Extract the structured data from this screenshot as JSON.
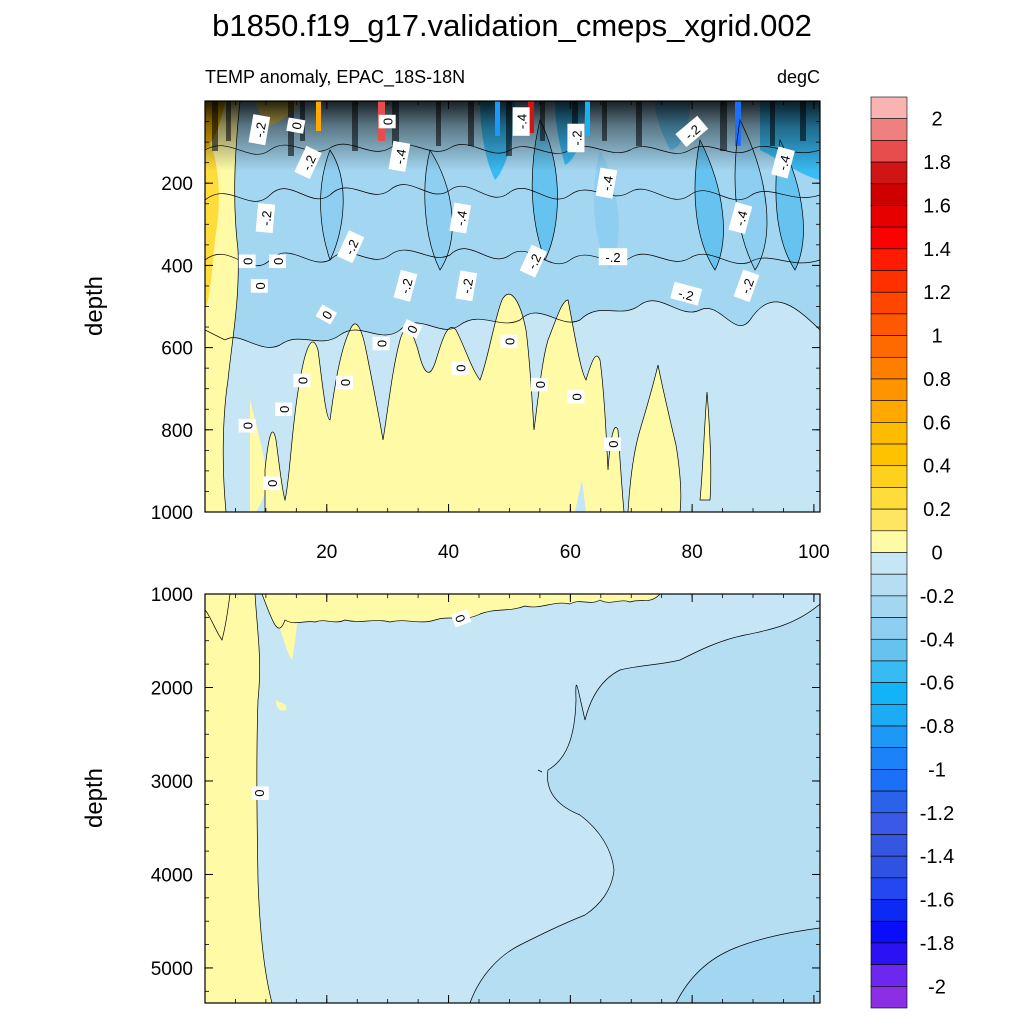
{
  "chart_data": {
    "type": "contour",
    "title": "b1850.f19_g17.validation_cmeps_xgrid.002",
    "panels": [
      {
        "name": "upper-ocean",
        "left_label": "TEMP anomaly, EPAC_18S-18N",
        "right_label": "degC",
        "ylabel": "depth",
        "ylim": [
          0,
          1000
        ],
        "y_reversed": true,
        "y_ticks": [
          200,
          400,
          600,
          800,
          1000
        ],
        "y_tick_labels": [
          "200",
          "400",
          "600",
          "800",
          "1000"
        ],
        "xlim": [
          0,
          101
        ],
        "x_ticks": [
          20,
          40,
          60,
          80,
          100
        ],
        "x_tick_labels": [
          "20",
          "40",
          "60",
          "80",
          "100"
        ],
        "contour_labels": [
          {
            "text": "-.2",
            "x": 9,
            "y": 70,
            "rot": -80
          },
          {
            "text": "0",
            "x": 15,
            "y": 60,
            "rot": -80
          },
          {
            "text": "-.2",
            "x": 17,
            "y": 150,
            "rot": -65
          },
          {
            "text": "0",
            "x": 30,
            "y": 50,
            "rot": -90
          },
          {
            "text": "-.4",
            "x": 32,
            "y": 135,
            "rot": -80
          },
          {
            "text": "-.4",
            "x": 52,
            "y": 50,
            "rot": -90
          },
          {
            "text": "-.2",
            "x": 61,
            "y": 90,
            "rot": -90
          },
          {
            "text": "-.4",
            "x": 66,
            "y": 200,
            "rot": -80
          },
          {
            "text": "-.2",
            "x": 80,
            "y": 75,
            "rot": -40
          },
          {
            "text": "-.4",
            "x": 95,
            "y": 150,
            "rot": -75
          },
          {
            "text": "-.2",
            "x": 10,
            "y": 285,
            "rot": -85
          },
          {
            "text": "-.2",
            "x": 24,
            "y": 355,
            "rot": -65
          },
          {
            "text": "-.4",
            "x": 42,
            "y": 285,
            "rot": -80
          },
          {
            "text": "-.4",
            "x": 88,
            "y": 285,
            "rot": -75
          },
          {
            "text": "0",
            "x": 7,
            "y": 390,
            "rot": -90
          },
          {
            "text": "0",
            "x": 12,
            "y": 390,
            "rot": -90
          },
          {
            "text": "0",
            "x": 9,
            "y": 450,
            "rot": -90
          },
          {
            "text": "-.2",
            "x": 33,
            "y": 450,
            "rot": -75
          },
          {
            "text": "-.2",
            "x": 43,
            "y": 450,
            "rot": -80
          },
          {
            "text": "-.2",
            "x": 54,
            "y": 390,
            "rot": -65
          },
          {
            "text": "-.2",
            "x": 67,
            "y": 380,
            "rot": 0
          },
          {
            "text": "-.2",
            "x": 79,
            "y": 470,
            "rot": 15
          },
          {
            "text": "-.2",
            "x": 89,
            "y": 450,
            "rot": -70
          },
          {
            "text": "0",
            "x": 20,
            "y": 520,
            "rot": -60
          },
          {
            "text": "0",
            "x": 29,
            "y": 590,
            "rot": -90
          },
          {
            "text": "0",
            "x": 34,
            "y": 555,
            "rot": -65
          },
          {
            "text": "0",
            "x": 50,
            "y": 585,
            "rot": -90
          },
          {
            "text": "0",
            "x": 42,
            "y": 650,
            "rot": -90
          },
          {
            "text": "0",
            "x": 16,
            "y": 680,
            "rot": -90
          },
          {
            "text": "0",
            "x": 23,
            "y": 685,
            "rot": -90
          },
          {
            "text": "0",
            "x": 55,
            "y": 690,
            "rot": -90
          },
          {
            "text": "0",
            "x": 61,
            "y": 720,
            "rot": -90
          },
          {
            "text": "0",
            "x": 13,
            "y": 750,
            "rot": -90
          },
          {
            "text": "0",
            "x": 7,
            "y": 790,
            "rot": -90
          },
          {
            "text": "0",
            "x": 67,
            "y": 835,
            "rot": -90
          },
          {
            "text": "0",
            "x": 11,
            "y": 930,
            "rot": -90
          }
        ]
      },
      {
        "name": "deep-ocean",
        "ylabel": "depth",
        "ylim": [
          1000,
          5375
        ],
        "y_reversed": true,
        "y_ticks": [
          1000,
          2000,
          3000,
          4000,
          5000
        ],
        "y_tick_labels": [
          "1000",
          "2000",
          "3000",
          "4000",
          "5000"
        ],
        "xlim": [
          0,
          101
        ],
        "x_ticks": [
          20,
          40,
          60,
          80,
          100
        ],
        "contour_labels": [
          {
            "text": "0",
            "x": 42,
            "y": 1260,
            "rot": 70
          },
          {
            "text": "0",
            "x": 9,
            "y": 3130,
            "rot": 90
          }
        ]
      }
    ],
    "colorbar": {
      "units": "degC",
      "min": -2.1,
      "max": 2.1,
      "step": 0.1,
      "tick_values": [
        2,
        1.8,
        1.6,
        1.4,
        1.2,
        1,
        0.8,
        0.6,
        0.4,
        0.2,
        0,
        -0.2,
        -0.4,
        -0.6,
        -0.8,
        -1,
        -1.2,
        -1.4,
        -1.6,
        -1.8,
        -2
      ],
      "tick_labels": [
        "2",
        "1.8",
        "1.6",
        "1.4",
        "1.2",
        "1",
        "0.8",
        "0.6",
        "0.4",
        "0.2",
        "0",
        "-0.2",
        "-0.4",
        "-0.6",
        "-0.8",
        "-1",
        "-1.2",
        "-1.4",
        "-1.6",
        "-1.8",
        "-2"
      ],
      "colors_top_to_bottom": [
        "#f9b3b3",
        "#ef8080",
        "#e84d4d",
        "#d11515",
        "#cf0000",
        "#e60000",
        "#fe0000",
        "#fe1b00",
        "#fe3000",
        "#fe4600",
        "#fe5800",
        "#fe6a00",
        "#fe7e00",
        "#fe9400",
        "#fea800",
        "#febc00",
        "#fec200",
        "#fed21c",
        "#fedc3a",
        "#fee662",
        "#fefaa6",
        "#c6e6f6",
        "#b5def3",
        "#a3d6f0",
        "#8ecef0",
        "#66c3f0",
        "#38baf3",
        "#13b3f7",
        "#1bacf5",
        "#1d98f6",
        "#1b83f7",
        "#1c70f7",
        "#2a62ea",
        "#3a59e6",
        "#3556e1",
        "#2f52e3",
        "#2347f0",
        "#0c2af3",
        "#0a0dfa",
        "#2c11f4",
        "#6c28ef",
        "#8c2ee5"
      ]
    },
    "colors": {
      "zero_band": "#fefaa6",
      "neg_band_1": "#c6e6f6",
      "neg_band_2": "#b5def3",
      "neg_band_3": "#a3d6f0"
    }
  }
}
